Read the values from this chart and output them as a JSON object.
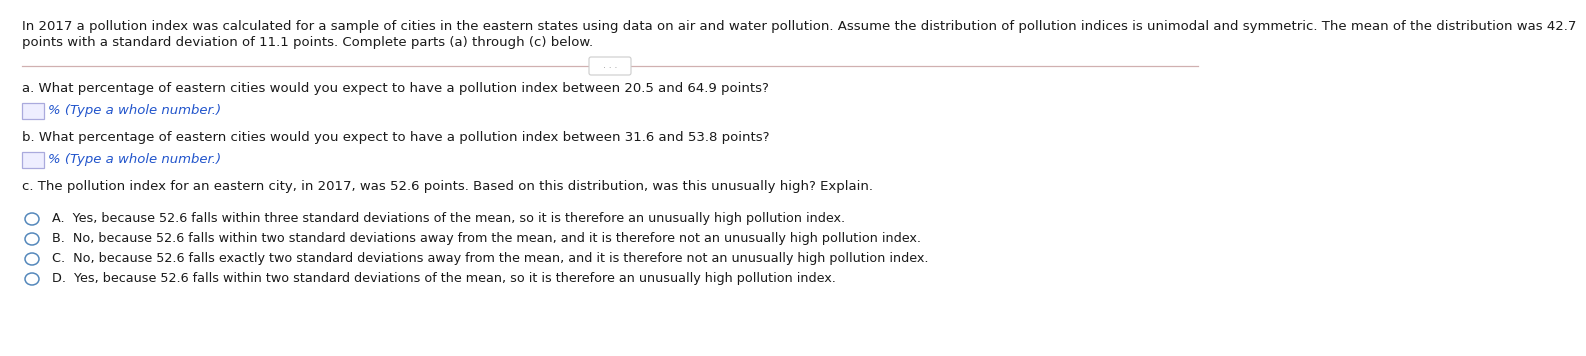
{
  "background_color": "#ffffff",
  "intro_line1": "In 2017 a pollution index was calculated for a sample of cities in the eastern states using data on air and water pollution. Assume the distribution of pollution indices is unimodal and symmetric. The mean of the distribution was 42.7",
  "intro_line2": "points with a standard deviation of 11.1 points. Complete parts (a) through (c) below.",
  "separator_dots": ". . .",
  "part_a_label": "a. What percentage of eastern cities would you expect to have a pollution index between 20.5 and 64.9 points?",
  "input_hint_a": "% (Type a whole number.)",
  "part_b_label": "b. What percentage of eastern cities would you expect to have a pollution index between 31.6 and 53.8 points?",
  "input_hint_b": "% (Type a whole number.)",
  "part_c_label": "c. The pollution index for an eastern city, in 2017, was 52.6 points. Based on this distribution, was this unusually high? Explain.",
  "option_A": "A.  Yes, because 52.6 falls within three standard deviations of the mean, so it is therefore an unusually high pollution index.",
  "option_B": "B.  No, because 52.6 falls within two standard deviations away from the mean, and it is therefore not an unusually high pollution index.",
  "option_C": "C.  No, because 52.6 falls exactly two standard deviations away from the mean, and it is therefore not an unusually high pollution index.",
  "option_D": "D.  Yes, because 52.6 falls within two standard deviations of the mean, so it is therefore an unusually high pollution index.",
  "text_color": "#1a1a1a",
  "hint_color": "#2255cc",
  "line_color": "#d0b0b0",
  "circle_color": "#5588bb",
  "input_box_border": "#aaaadd",
  "input_box_fill": "#eeeeff",
  "dots_border": "#cccccc",
  "dots_color": "#888888",
  "intro_fontsize": 9.5,
  "body_fontsize": 9.5,
  "hint_fontsize": 9.5,
  "option_fontsize": 9.2
}
